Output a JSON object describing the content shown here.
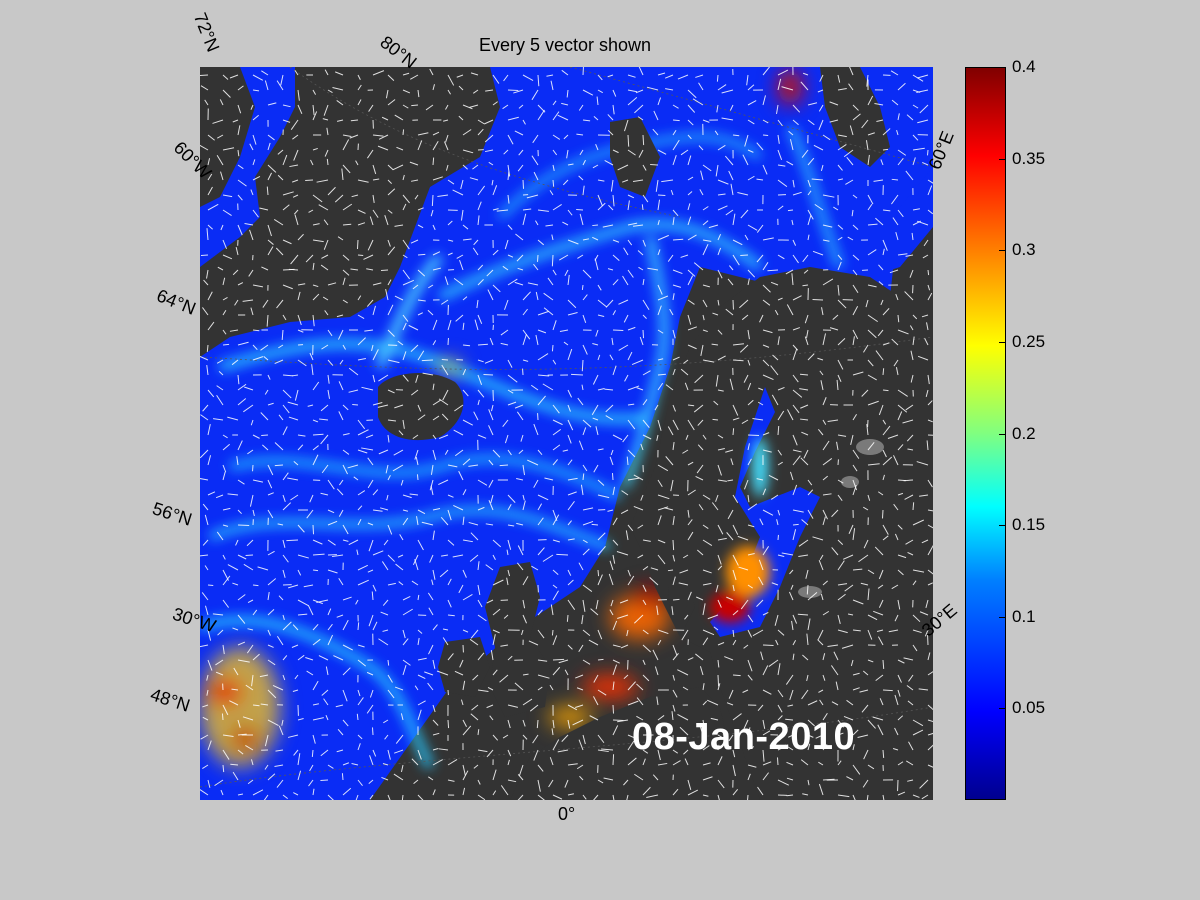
{
  "title": "Every 5 vector shown",
  "date_stamp": "08-Jan-2010",
  "lat_labels": [
    "72°N",
    "80°N",
    "60°W",
    "64°N",
    "56°N",
    "30°W",
    "48°N"
  ],
  "lon_labels": [
    "0°",
    "30°E",
    "60°E"
  ],
  "colorbar": {
    "min": 0,
    "max": 0.4,
    "ticks": [
      "0.4",
      "0.35",
      "0.3",
      "0.25",
      "0.2",
      "0.15",
      "0.1",
      "0.05"
    ],
    "colormap": "jet"
  },
  "colors": {
    "background": "#c8c8c8",
    "land": "#333333",
    "ocean_low": "#0018ff",
    "vectors": "#ffffff"
  }
}
